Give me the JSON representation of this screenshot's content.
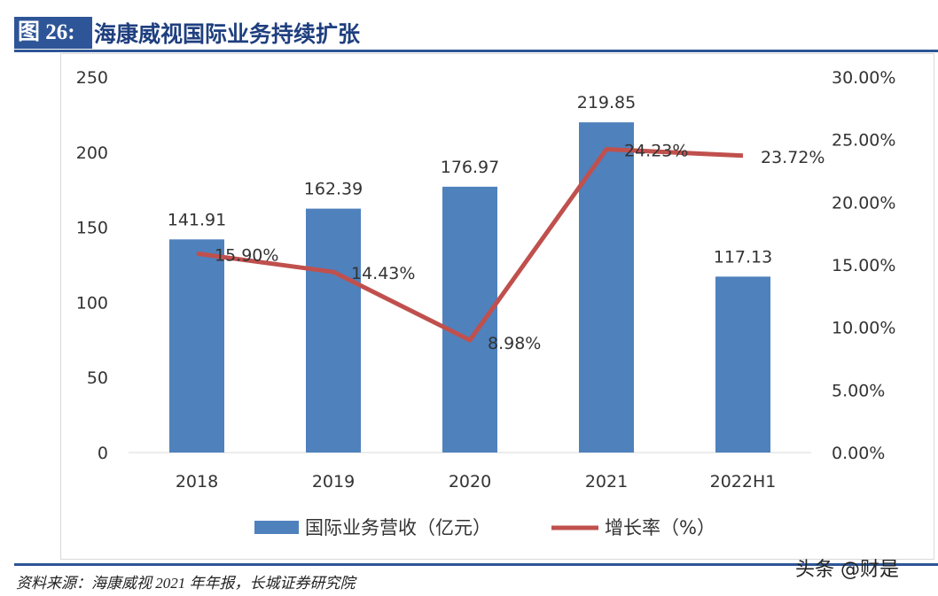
{
  "figure": {
    "label": "图 26:",
    "title": "海康威视国际业务持续扩张"
  },
  "source": "资料来源：海康威视 2021 年年报，长城证券研究院",
  "watermark": "头条 @财是",
  "chart_data": {
    "type": "bar+line",
    "categories": [
      "2018",
      "2019",
      "2020",
      "2021",
      "2022H1"
    ],
    "series": [
      {
        "name": "国际业务营收（亿元）",
        "type": "bar",
        "axis": "left",
        "color": "#4F81BD",
        "values": [
          141.91,
          162.39,
          176.97,
          219.85,
          117.13
        ],
        "labels": [
          "141.91",
          "162.39",
          "176.97",
          "219.85",
          "117.13"
        ]
      },
      {
        "name": "增长率（%）",
        "type": "line",
        "axis": "right",
        "color": "#C0504D",
        "values": [
          15.9,
          14.43,
          8.98,
          24.23,
          23.72
        ],
        "labels": [
          "15.90%",
          "14.43%",
          "8.98%",
          "24.23%",
          "23.72%"
        ]
      }
    ],
    "y_left": {
      "range": [
        0,
        250
      ],
      "ticks": [
        "0",
        "50",
        "100",
        "150",
        "200",
        "250"
      ]
    },
    "y_right": {
      "range": [
        0,
        30
      ],
      "ticks": [
        "0.00%",
        "5.00%",
        "10.00%",
        "15.00%",
        "20.00%",
        "25.00%",
        "30.00%"
      ]
    },
    "grid": false,
    "legend": "bottom"
  }
}
